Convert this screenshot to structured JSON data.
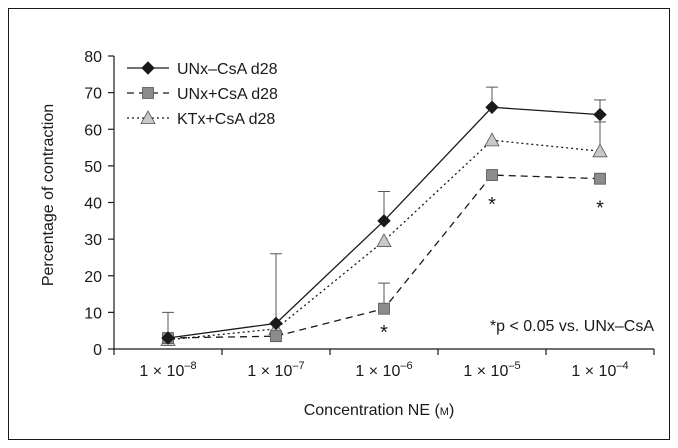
{
  "chart_data": {
    "type": "line",
    "xlabel": "Concentration NE (",
    "xlabel_unit": "M",
    "xlabel_close": ")",
    "ylabel": "Percentage of contraction",
    "ylim": [
      0,
      80
    ],
    "yticks": [
      0,
      10,
      20,
      30,
      40,
      50,
      60,
      70,
      80
    ],
    "categories": [
      {
        "base": "1 × 10",
        "exp": "–8"
      },
      {
        "base": "1 × 10",
        "exp": "–7"
      },
      {
        "base": "1 × 10",
        "exp": "–6"
      },
      {
        "base": "1 × 10",
        "exp": "–5"
      },
      {
        "base": "1 × 10",
        "exp": "–4"
      }
    ],
    "series": [
      {
        "name": "UNx–CsA d28",
        "marker": "diamond",
        "line": "solid",
        "values": [
          3,
          7,
          35,
          66,
          64
        ],
        "error": [
          7,
          19,
          8,
          5.5,
          4
        ]
      },
      {
        "name": "UNx+CsA d28",
        "marker": "square",
        "line": "dashed",
        "values": [
          3,
          3.5,
          11,
          47.5,
          46.5
        ],
        "error": [
          0,
          0,
          7,
          0,
          0
        ]
      },
      {
        "name": "KTx+CsA d28",
        "marker": "triangle",
        "line": "dotted",
        "values": [
          2.5,
          5.5,
          29.5,
          57,
          54
        ],
        "error": [
          0,
          0,
          0,
          0,
          8
        ]
      }
    ],
    "significance_marks": [
      {
        "category_index": 2,
        "y": 6,
        "label": "*"
      },
      {
        "category_index": 3,
        "y": 41,
        "label": "*"
      },
      {
        "category_index": 4,
        "y": 40,
        "label": "*"
      }
    ],
    "annotation": "*p < 0.05 vs. UNx–CsA",
    "legend_position": "top-left",
    "grid": false,
    "colors": {
      "axis": "#1a1a1a",
      "diamond_fill": "#1a1a1a",
      "square_fill": "#8c8c8c",
      "triangle_fill": "#c8c8c8",
      "marker_stroke": "#555555"
    }
  }
}
